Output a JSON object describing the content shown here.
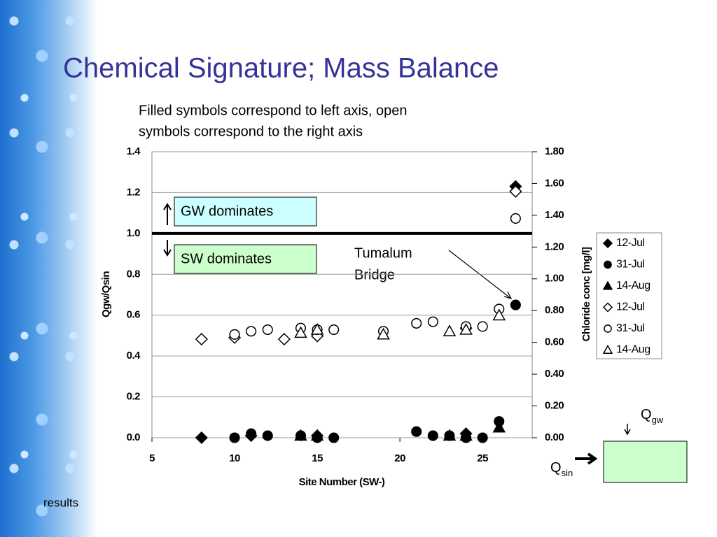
{
  "chart_data": {
    "type": "scatter",
    "title": "Chemical Signature; Mass Balance",
    "note": [
      "Filled symbols correspond to left axis, open",
      "symbols correspond to the right axis"
    ],
    "annotations": [
      "GW dominates",
      "SW dominates"
    ],
    "point_label": [
      "Tumalum",
      "Bridge"
    ],
    "xlabel": "Site Number (SW-)",
    "ylabel": "Qgw/Qsin",
    "y2label": "Chloride conc [mg/l]",
    "xlim": [
      5,
      28
    ],
    "xticks": [
      5,
      10,
      15,
      20,
      25
    ],
    "ylim": [
      0,
      1.4
    ],
    "yticks": [
      {
        "value": 0,
        "label": "0.0"
      },
      0.2,
      0.4,
      0.6,
      0.8,
      {
        "value": 1,
        "label": "1.0"
      },
      1.2,
      1.4
    ],
    "y2lim": [
      0,
      1.8
    ],
    "y2ticks": [
      {
        "value": 0,
        "label": "0.00"
      },
      {
        "value": 0.2,
        "label": "0.20"
      },
      {
        "value": 0.4,
        "label": "0.40"
      },
      {
        "value": 0.6,
        "label": "0.60"
      },
      {
        "value": 0.8,
        "label": "0.80"
      },
      {
        "value": 1,
        "label": "1.00"
      },
      {
        "value": 1.2,
        "label": "1.20"
      },
      {
        "value": 1.4,
        "label": "1.40"
      },
      {
        "value": 1.6,
        "label": "1.60"
      },
      {
        "value": 1.8,
        "label": "1.80"
      }
    ],
    "hline": 1,
    "grid": true,
    "series": [
      {
        "name": "12-Jul",
        "color": "#000000",
        "marker": "diamond",
        "filled": true,
        "x": [
          8,
          11,
          15,
          24,
          27
        ],
        "values": [
          0,
          0.01,
          0.01,
          0.02,
          1.23
        ]
      },
      {
        "name": "31-Jul",
        "color": "#000000",
        "marker": "circle",
        "filled": true,
        "x": [
          10,
          11,
          12,
          14,
          15,
          16,
          21,
          22,
          23,
          24,
          25,
          26,
          27
        ],
        "values": [
          0,
          0.02,
          0.01,
          0.01,
          0,
          0,
          0.03,
          0.01,
          0.01,
          0,
          0,
          0.08,
          0.65
        ]
      },
      {
        "name": "14-Aug",
        "color": "#000000",
        "marker": "triangle",
        "filled": true,
        "x": [
          14,
          15,
          23,
          24,
          26
        ],
        "values": [
          0.01,
          0.01,
          0.01,
          0.01,
          0.05
        ]
      },
      {
        "name": "12-Jul",
        "color": "#000000",
        "marker": "diamond",
        "filled": false,
        "axis": "y2",
        "x": [
          8,
          10,
          13,
          15,
          24,
          27
        ],
        "values": [
          0.62,
          0.63,
          0.62,
          0.64,
          0.69,
          1.55
        ]
      },
      {
        "name": "31-Jul",
        "color": "#000000",
        "marker": "circle",
        "filled": false,
        "axis": "y2",
        "x": [
          10,
          11,
          12,
          14,
          15,
          16,
          19,
          21,
          22,
          24,
          25,
          26,
          27
        ],
        "values": [
          0.65,
          0.67,
          0.68,
          0.69,
          0.68,
          0.68,
          0.67,
          0.72,
          0.73,
          0.7,
          0.7,
          0.81,
          1.38
        ]
      },
      {
        "name": "14-Aug",
        "color": "#000000",
        "marker": "triangle",
        "filled": false,
        "axis": "y2",
        "x": [
          14,
          15,
          19,
          23,
          24,
          26
        ],
        "values": [
          0.66,
          0.68,
          0.65,
          0.67,
          0.68,
          0.77
        ]
      }
    ]
  },
  "diagram": {
    "q_gw": [
      "Q",
      "gw"
    ],
    "q_sin": [
      "Q",
      "sin"
    ],
    "footer": "results"
  }
}
